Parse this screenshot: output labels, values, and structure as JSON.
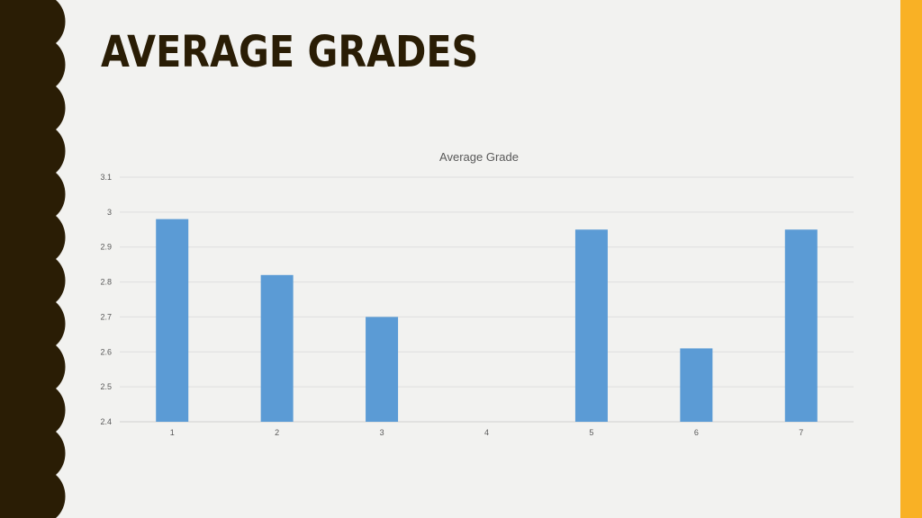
{
  "slide": {
    "title": "AVERAGE GRADES",
    "colors": {
      "background": "#f2f2f0",
      "left_band": "#2a1d05",
      "right_band": "#f9b125",
      "bar": "#5b9bd5"
    }
  },
  "chart_data": {
    "type": "bar",
    "title": "Average Grade",
    "categories": [
      "1",
      "2",
      "3",
      "4",
      "5",
      "6",
      "7"
    ],
    "series": [
      {
        "values": [
          2.98,
          2.82,
          2.7,
          null,
          2.95,
          2.61,
          2.95
        ]
      }
    ],
    "xlabel": "",
    "ylabel": "",
    "ylim": [
      2.4,
      3.1
    ],
    "yticks": [
      "2.4",
      "2.5",
      "2.6",
      "2.7",
      "2.8",
      "2.9",
      "3",
      "3.1"
    ],
    "grid": true,
    "legend": "none"
  }
}
